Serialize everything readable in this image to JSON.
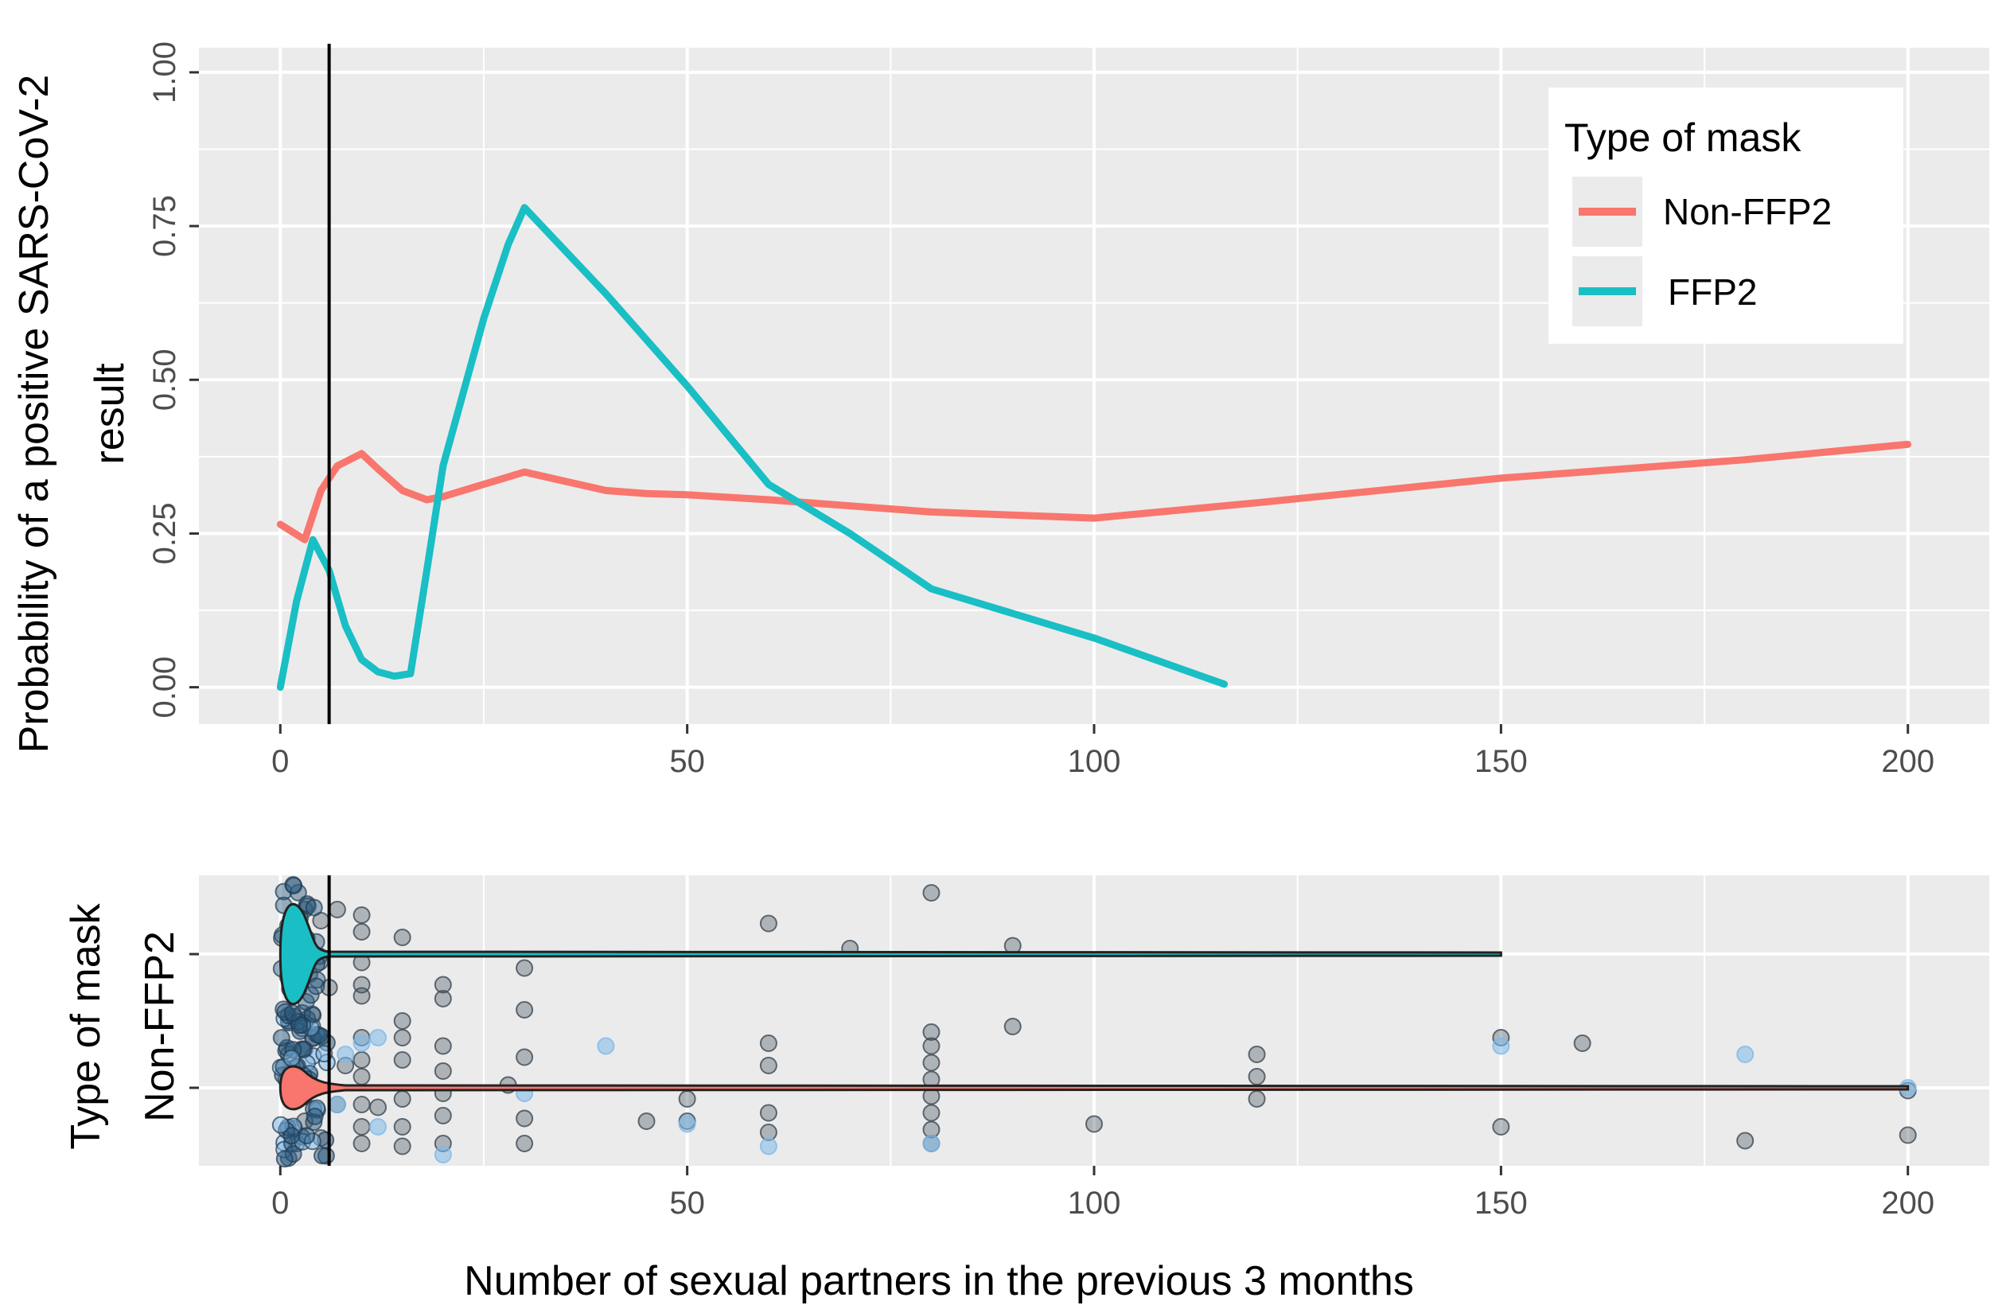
{
  "colors": {
    "non_ffp2": "#f8766d",
    "ffp2": "#19bfc4",
    "panel_bg": "#ebebeb",
    "grid": "#ffffff",
    "ref_line": "#000000",
    "point_dark": "#3d4a55",
    "point_light": "#7fb9ea"
  },
  "chart_data": [
    {
      "type": "line",
      "title": "",
      "xlabel": "",
      "ylabel_line1": "Probability of a positive SARS-CoV-2",
      "ylabel_line2": "result",
      "xlim": [
        -10,
        210
      ],
      "ylim": [
        -0.06,
        1.04
      ],
      "xticks": [
        0,
        50,
        100,
        150,
        200
      ],
      "xtick_labels": [
        "0",
        "50",
        "100",
        "150",
        "200"
      ],
      "yticks": [
        0,
        0.25,
        0.5,
        0.75,
        1.0
      ],
      "ytick_labels": [
        "0.00",
        "0.25",
        "0.50",
        "0.75",
        "1.00"
      ],
      "reference_x": 6,
      "legend": {
        "title": "Type of mask",
        "position": "top-right"
      },
      "series": [
        {
          "name": "Non-FFP2",
          "color_key": "non_ffp2",
          "x": [
            0,
            3,
            5,
            7,
            10,
            12,
            15,
            18,
            20,
            25,
            30,
            35,
            40,
            45,
            50,
            60,
            70,
            80,
            90,
            100,
            120,
            150,
            180,
            200
          ],
          "y": [
            0.265,
            0.24,
            0.32,
            0.36,
            0.38,
            0.355,
            0.32,
            0.305,
            0.31,
            0.33,
            0.35,
            0.335,
            0.32,
            0.315,
            0.313,
            0.305,
            0.295,
            0.285,
            0.28,
            0.275,
            0.3,
            0.34,
            0.37,
            0.395
          ]
        },
        {
          "name": "FFP2",
          "color_key": "ffp2",
          "x": [
            0,
            2,
            4,
            6,
            8,
            10,
            12,
            14,
            16,
            18,
            20,
            25,
            28,
            30,
            35,
            40,
            50,
            60,
            70,
            80,
            100,
            116
          ],
          "y": [
            0.0,
            0.14,
            0.24,
            0.19,
            0.1,
            0.045,
            0.025,
            0.018,
            0.022,
            0.19,
            0.36,
            0.6,
            0.72,
            0.78,
            0.71,
            0.64,
            0.49,
            0.33,
            0.25,
            0.16,
            0.08,
            0.005
          ]
        }
      ]
    },
    {
      "type": "scatter",
      "title": "",
      "xlabel": "Number of sexual partners in the previous 3 months",
      "ylabel": "Type of mask",
      "ytick_labels": [
        "Non-FFP2"
      ],
      "xlim": [
        -10,
        210
      ],
      "xticks": [
        0,
        50,
        100,
        150,
        200
      ],
      "xtick_labels": [
        "0",
        "50",
        "100",
        "150",
        "200"
      ],
      "reference_x": 6,
      "groups": [
        {
          "name": "FFP2",
          "color_key": "ffp2",
          "max_x": 150
        },
        {
          "name": "Non-FFP2",
          "color_key": "non_ffp2",
          "max_x": 200
        }
      ],
      "points_ffp2": [
        [
          10,
          0.75
        ],
        [
          10,
          0.15
        ],
        [
          10,
          0.55
        ],
        [
          10,
          -0.4
        ],
        [
          10,
          -0.7
        ],
        [
          15,
          -0.3
        ],
        [
          20,
          0.8
        ],
        [
          20,
          0.55
        ],
        [
          30,
          1.0
        ],
        [
          30,
          0.25
        ],
        [
          60,
          -0.55
        ],
        [
          70,
          -0.1
        ],
        [
          80,
          -1.1
        ],
        [
          90,
          1.3
        ],
        [
          90,
          -0.15
        ],
        [
          3,
          -0.8
        ],
        [
          5,
          -0.6
        ],
        [
          7,
          -0.8
        ],
        [
          6,
          0.6
        ],
        [
          4,
          1.1
        ]
      ],
      "points_nonffp2": [
        [
          10,
          1.0
        ],
        [
          10,
          0.7
        ],
        [
          10,
          0.3
        ],
        [
          10,
          -0.2
        ],
        [
          10,
          -0.5
        ],
        [
          10,
          -0.9
        ],
        [
          12,
          0.35
        ],
        [
          15,
          1.05
        ],
        [
          15,
          0.7
        ],
        [
          15,
          0.2
        ],
        [
          15,
          -0.5
        ],
        [
          15,
          -0.9
        ],
        [
          15,
          -1.2
        ],
        [
          20,
          1.0
        ],
        [
          20,
          0.5
        ],
        [
          20,
          0.1
        ],
        [
          20,
          -0.3
        ],
        [
          20,
          -0.75
        ],
        [
          28,
          -0.05
        ],
        [
          30,
          1.0
        ],
        [
          30,
          0.55
        ],
        [
          30,
          -0.55
        ],
        [
          45,
          0.6
        ],
        [
          50,
          0.6
        ],
        [
          50,
          0.2
        ],
        [
          60,
          0.8
        ],
        [
          60,
          0.45
        ],
        [
          60,
          -0.4
        ],
        [
          60,
          -0.8
        ],
        [
          80,
          1.0
        ],
        [
          80,
          0.75
        ],
        [
          80,
          0.45
        ],
        [
          80,
          0.15
        ],
        [
          80,
          -0.15
        ],
        [
          80,
          -0.45
        ],
        [
          80,
          -0.75
        ],
        [
          80,
          -1.0
        ],
        [
          100,
          0.65
        ],
        [
          120,
          0.2
        ],
        [
          120,
          -0.2
        ],
        [
          120,
          -0.6
        ],
        [
          150,
          0.7
        ],
        [
          150,
          -0.9
        ],
        [
          160,
          -0.8
        ],
        [
          180,
          0.95
        ],
        [
          200,
          0.85
        ],
        [
          200,
          0.05
        ],
        [
          2,
          1.0
        ],
        [
          3,
          0.6
        ],
        [
          1,
          -0.6
        ],
        [
          4,
          -0.9
        ],
        [
          5,
          0.9
        ],
        [
          7,
          0.3
        ],
        [
          8,
          -0.4
        ]
      ],
      "points_light": [
        [
          7,
          0.3
        ],
        [
          8,
          -0.6
        ],
        [
          10,
          -0.8
        ],
        [
          12,
          0.7
        ],
        [
          12,
          -0.9
        ],
        [
          20,
          1.2
        ],
        [
          30,
          0.1
        ],
        [
          40,
          -0.75
        ],
        [
          50,
          0.65
        ],
        [
          60,
          1.05
        ],
        [
          80,
          1.0
        ],
        [
          150,
          -0.75
        ],
        [
          180,
          -0.6
        ],
        [
          200,
          0.0
        ]
      ]
    }
  ]
}
